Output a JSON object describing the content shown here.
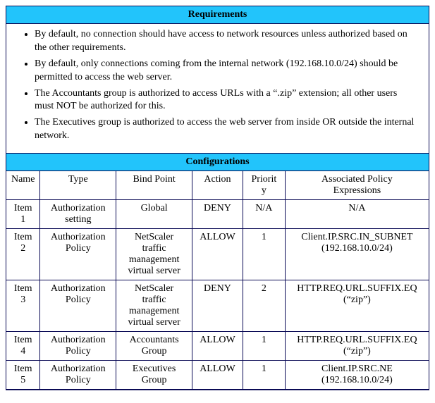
{
  "colors": {
    "header_bg": "#22c4fb",
    "border": "#0a0a55",
    "text": "#000000",
    "background": "#ffffff"
  },
  "typography": {
    "font_family": "Times New Roman",
    "base_size_pt": 11,
    "header_weight": "bold"
  },
  "requirements": {
    "title": "Requirements",
    "items": [
      "By default, no connection should have access to network resources unless authorized based on the other requirements.",
      "By default, only connections coming from the internal network (192.168.10.0/24) should be permitted to access the web server.",
      "The Accountants group is authorized to access URLs with a “.zip” extension; all other users must NOT be authorized for this.",
      "The Executives group is authorized to access the web server from inside OR outside the internal network."
    ]
  },
  "configurations": {
    "title": "Configurations",
    "columns": [
      "Name",
      "Type",
      "Bind Point",
      "Action",
      "Priorit\ny",
      "Associated Policy\nExpressions"
    ],
    "col_widths_pct": [
      8,
      18,
      18,
      12,
      10,
      34
    ],
    "rows": [
      {
        "name": "Item 1",
        "type": "Authorization\nsetting",
        "bind": "Global",
        "action": "DENY",
        "priority": "N/A",
        "expr": "N/A"
      },
      {
        "name": "Item 2",
        "type": "Authorization\nPolicy",
        "bind": "NetScaler\ntraffic\nmanagement\nvirtual server",
        "action": "ALLOW",
        "priority": "1",
        "expr": "Client.IP.SRC.IN_SUBNET\n(192.168.10.0/24)"
      },
      {
        "name": "Item 3",
        "type": "Authorization\nPolicy",
        "bind": "NetScaler\ntraffic\nmanagement\nvirtual server",
        "action": "DENY",
        "priority": "2",
        "expr": "HTTP.REQ.URL.SUFFIX.EQ\n(“zip”)"
      },
      {
        "name": "Item 4",
        "type": "Authorization\nPolicy",
        "bind": "Accountants\nGroup",
        "action": "ALLOW",
        "priority": "1",
        "expr": "HTTP.REQ.URL.SUFFIX.EQ\n(“zip”)"
      },
      {
        "name": "Item 5",
        "type": "Authorization\nPolicy",
        "bind": "Executives\nGroup",
        "action": "ALLOW",
        "priority": "1",
        "expr": "Client.IP.SRC.NE\n(192.168.10.0/24)"
      }
    ]
  }
}
